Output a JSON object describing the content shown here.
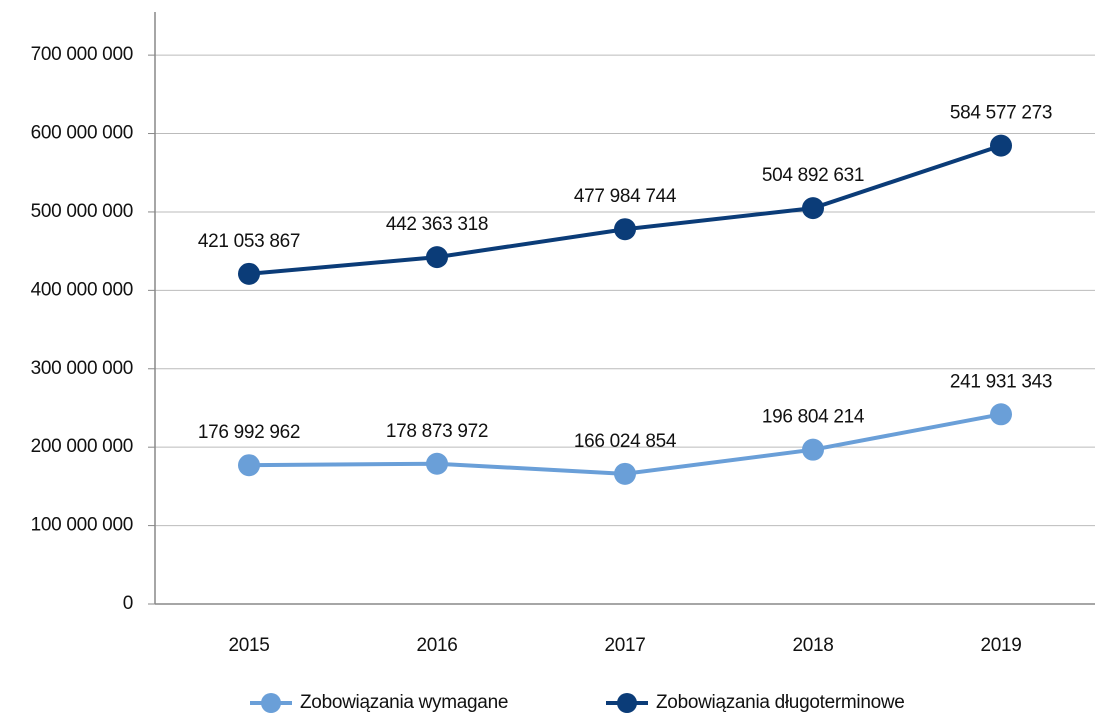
{
  "chart_data": {
    "type": "line",
    "categories": [
      "2015",
      "2016",
      "2017",
      "2018",
      "2019"
    ],
    "series": [
      {
        "name": "Zobowiązania wymagane",
        "color": "#6a9fd8",
        "values": [
          176992962,
          178873972,
          166024854,
          196804214,
          241931343
        ],
        "value_labels": [
          "176 992 962",
          "178 873 972",
          "166 024 854",
          "196 804 214",
          "241 931 343"
        ]
      },
      {
        "name": "Zobowiązania długoterminowe",
        "color": "#0b3c78",
        "values": [
          421053867,
          442363318,
          477984744,
          504892631,
          584577273
        ],
        "value_labels": [
          "421 053 867",
          "442 363 318",
          "477 984 744",
          "504 892 631",
          "584 577 273"
        ]
      }
    ],
    "ylim": [
      0,
      755000000
    ],
    "yticks": [
      {
        "value": 0,
        "label": "0"
      },
      {
        "value": 100000000,
        "label": "100 000 000"
      },
      {
        "value": 200000000,
        "label": "200 000 000"
      },
      {
        "value": 300000000,
        "label": "300 000 000"
      },
      {
        "value": 400000000,
        "label": "400 000 000"
      },
      {
        "value": 500000000,
        "label": "500 000 000"
      },
      {
        "value": 600000000,
        "label": "600 000 000"
      },
      {
        "value": 700000000,
        "label": "700 000 000"
      }
    ],
    "grid": true,
    "legend": "bottom"
  }
}
